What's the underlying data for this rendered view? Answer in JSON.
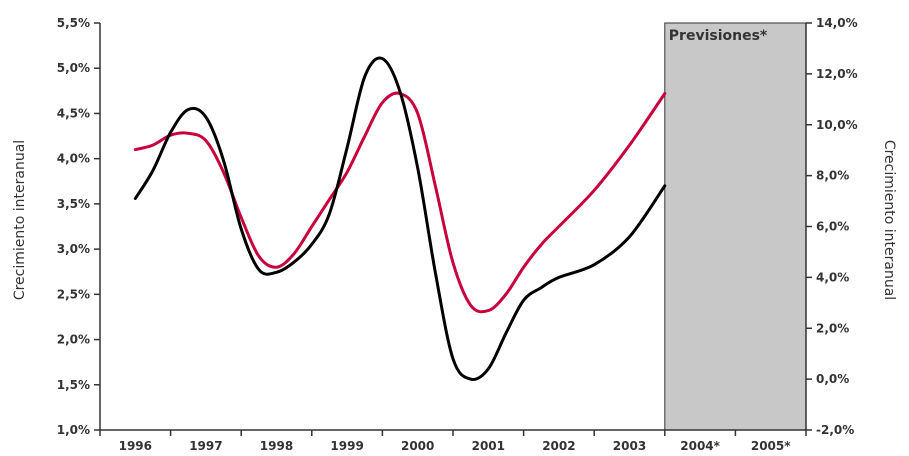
{
  "chart_data": {
    "type": "line",
    "title": "",
    "ylabel_left": "Crecimiento interanual",
    "ylabel_right": "Crecimiento interanual",
    "x_categories": [
      "1996",
      "1997",
      "1998",
      "1999",
      "2000",
      "2001",
      "2002",
      "2003",
      "2004*",
      "2005*"
    ],
    "y_left": {
      "min": 1.0,
      "max": 5.5,
      "step": 0.5,
      "tick_labels": [
        "1,0%",
        "1,5%",
        "2,0%",
        "2,5%",
        "3,0%",
        "3,5%",
        "4,0%",
        "4,5%",
        "5,0%",
        "5,5%"
      ]
    },
    "y_right": {
      "min": -2.0,
      "max": 14.0,
      "step": 2.0,
      "tick_labels": [
        "-2,0%",
        "0,0%",
        "2,0%",
        "4,0%",
        "6,0%",
        "8,0%",
        "10,0%",
        "12,0%",
        "14,0%"
      ]
    },
    "forecast_region": {
      "label": "Previsiones*",
      "from": "2004*",
      "to": "2005*",
      "color": "#c8c8c8"
    },
    "grid": false,
    "series": [
      {
        "axis": "left",
        "color": "#c8003c",
        "points": [
          {
            "x": 1996.0,
            "y": 4.1
          },
          {
            "x": 1996.25,
            "y": 4.15
          },
          {
            "x": 1996.5,
            "y": 4.26
          },
          {
            "x": 1996.75,
            "y": 4.28
          },
          {
            "x": 1997.0,
            "y": 4.2
          },
          {
            "x": 1997.25,
            "y": 3.85
          },
          {
            "x": 1997.5,
            "y": 3.35
          },
          {
            "x": 1997.75,
            "y": 2.92
          },
          {
            "x": 1998.0,
            "y": 2.8
          },
          {
            "x": 1998.25,
            "y": 2.95
          },
          {
            "x": 1998.5,
            "y": 3.25
          },
          {
            "x": 1998.75,
            "y": 3.55
          },
          {
            "x": 1999.0,
            "y": 3.85
          },
          {
            "x": 1999.25,
            "y": 4.25
          },
          {
            "x": 1999.5,
            "y": 4.62
          },
          {
            "x": 1999.75,
            "y": 4.72
          },
          {
            "x": 2000.0,
            "y": 4.5
          },
          {
            "x": 2000.25,
            "y": 3.7
          },
          {
            "x": 2000.5,
            "y": 2.85
          },
          {
            "x": 2000.75,
            "y": 2.38
          },
          {
            "x": 2001.0,
            "y": 2.32
          },
          {
            "x": 2001.25,
            "y": 2.5
          },
          {
            "x": 2001.5,
            "y": 2.8
          },
          {
            "x": 2001.75,
            "y": 3.05
          },
          {
            "x": 2002.0,
            "y": 3.25
          },
          {
            "x": 2002.5,
            "y": 3.65
          },
          {
            "x": 2003.0,
            "y": 4.15
          },
          {
            "x": 2003.5,
            "y": 4.72
          }
        ]
      },
      {
        "axis": "right",
        "color": "#000000",
        "points": [
          {
            "x": 1996.0,
            "y": 7.1
          },
          {
            "x": 1996.25,
            "y": 8.2
          },
          {
            "x": 1996.5,
            "y": 9.7
          },
          {
            "x": 1996.75,
            "y": 10.6
          },
          {
            "x": 1997.0,
            "y": 10.3
          },
          {
            "x": 1997.25,
            "y": 8.6
          },
          {
            "x": 1997.5,
            "y": 5.9
          },
          {
            "x": 1997.75,
            "y": 4.3
          },
          {
            "x": 1998.0,
            "y": 4.2
          },
          {
            "x": 1998.25,
            "y": 4.6
          },
          {
            "x": 1998.5,
            "y": 5.3
          },
          {
            "x": 1998.75,
            "y": 6.5
          },
          {
            "x": 1999.0,
            "y": 9.1
          },
          {
            "x": 1999.25,
            "y": 11.9
          },
          {
            "x": 1999.5,
            "y": 12.6
          },
          {
            "x": 1999.75,
            "y": 11.3
          },
          {
            "x": 2000.0,
            "y": 8.3
          },
          {
            "x": 2000.25,
            "y": 4.2
          },
          {
            "x": 2000.5,
            "y": 0.8
          },
          {
            "x": 2000.75,
            "y": 0.0
          },
          {
            "x": 2001.0,
            "y": 0.4
          },
          {
            "x": 2001.25,
            "y": 1.8
          },
          {
            "x": 2001.5,
            "y": 3.1
          },
          {
            "x": 2001.75,
            "y": 3.6
          },
          {
            "x": 2002.0,
            "y": 4.0
          },
          {
            "x": 2002.5,
            "y": 4.5
          },
          {
            "x": 2003.0,
            "y": 5.6
          },
          {
            "x": 2003.5,
            "y": 7.6
          }
        ]
      }
    ]
  }
}
